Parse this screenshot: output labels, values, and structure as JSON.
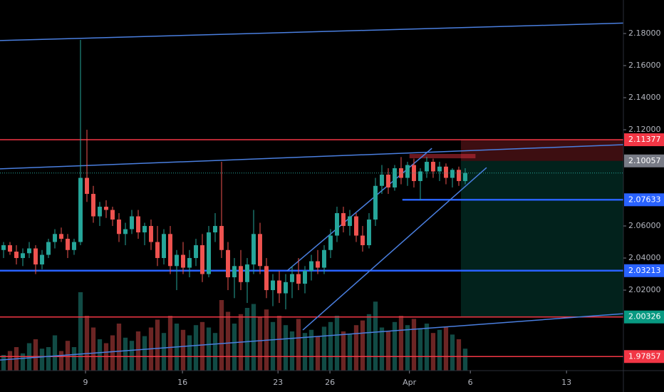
{
  "chart_data": {
    "type": "candlestick",
    "up_color": "#26a69a",
    "down_color": "#ef5350",
    "xlim": [
      -0.556,
      96.67
    ],
    "xticks": [
      {
        "value": 12.78,
        "label": "9"
      },
      {
        "value": 27.9,
        "label": "16"
      },
      {
        "value": 42.8,
        "label": "23"
      },
      {
        "value": 50.9,
        "label": "26"
      },
      {
        "value": 63.3,
        "label": "Apr"
      },
      {
        "value": 72.8,
        "label": "6"
      },
      {
        "value": 87.8,
        "label": "13"
      }
    ],
    "ylim": [
      1.9698,
      2.2009
    ],
    "yticks": [
      {
        "value": 2.18,
        "label": "2.18000"
      },
      {
        "value": 2.16,
        "label": "2.16000"
      },
      {
        "value": 2.14,
        "label": "2.14000"
      },
      {
        "value": 2.12,
        "label": "2.12000"
      },
      {
        "value": 2.06,
        "label": "2.06000"
      },
      {
        "value": 2.04,
        "label": "2.04000"
      },
      {
        "value": 2.02,
        "label": "2.02000"
      }
    ],
    "candles": [
      [
        2.045,
        2.05,
        2.04,
        2.048
      ],
      [
        2.048,
        2.05,
        2.042,
        2.044
      ],
      [
        2.044,
        2.048,
        2.036,
        2.04
      ],
      [
        2.04,
        2.046,
        2.035,
        2.043
      ],
      [
        2.043,
        2.05,
        2.04,
        2.046
      ],
      [
        2.046,
        2.048,
        2.03,
        2.036
      ],
      [
        2.036,
        2.045,
        2.033,
        2.042
      ],
      [
        2.042,
        2.052,
        2.04,
        2.05
      ],
      [
        2.05,
        2.058,
        2.046,
        2.055
      ],
      [
        2.055,
        2.059,
        2.05,
        2.052
      ],
      [
        2.052,
        2.055,
        2.04,
        2.045
      ],
      [
        2.045,
        2.052,
        2.042,
        2.05
      ],
      [
        2.05,
        2.176,
        2.048,
        2.09
      ],
      [
        2.09,
        2.12,
        2.075,
        2.08
      ],
      [
        2.08,
        2.085,
        2.062,
        2.066
      ],
      [
        2.066,
        2.075,
        2.06,
        2.072
      ],
      [
        2.072,
        2.076,
        2.065,
        2.07
      ],
      [
        2.07,
        2.072,
        2.06,
        2.064
      ],
      [
        2.064,
        2.068,
        2.05,
        2.055
      ],
      [
        2.055,
        2.062,
        2.048,
        2.058
      ],
      [
        2.058,
        2.07,
        2.055,
        2.066
      ],
      [
        2.066,
        2.07,
        2.052,
        2.056
      ],
      [
        2.056,
        2.062,
        2.048,
        2.06
      ],
      [
        2.06,
        2.064,
        2.045,
        2.05
      ],
      [
        2.05,
        2.06,
        2.035,
        2.04
      ],
      [
        2.04,
        2.058,
        2.036,
        2.055
      ],
      [
        2.055,
        2.06,
        2.03,
        2.035
      ],
      [
        2.035,
        2.045,
        2.02,
        2.042
      ],
      [
        2.042,
        2.05,
        2.03,
        2.034
      ],
      [
        2.034,
        2.045,
        2.028,
        2.04
      ],
      [
        2.04,
        2.052,
        2.035,
        2.048
      ],
      [
        2.048,
        2.055,
        2.025,
        2.03
      ],
      [
        2.03,
        2.06,
        2.028,
        2.056
      ],
      [
        2.056,
        2.068,
        2.05,
        2.06
      ],
      [
        2.06,
        2.1,
        2.04,
        2.045
      ],
      [
        2.045,
        2.05,
        2.02,
        2.028
      ],
      [
        2.028,
        2.04,
        2.015,
        2.035
      ],
      [
        2.035,
        2.045,
        2.02,
        2.025
      ],
      [
        2.025,
        2.04,
        2.012,
        2.036
      ],
      [
        2.036,
        2.07,
        2.03,
        2.055
      ],
      [
        2.055,
        2.062,
        2.03,
        2.035
      ],
      [
        2.035,
        2.04,
        2.015,
        2.02
      ],
      [
        2.02,
        2.03,
        2.01,
        2.026
      ],
      [
        2.026,
        2.032,
        2.012,
        2.018
      ],
      [
        2.018,
        2.03,
        2.008,
        2.025
      ],
      [
        2.025,
        2.035,
        2.015,
        2.03
      ],
      [
        2.03,
        2.04,
        2.02,
        2.024
      ],
      [
        2.024,
        2.035,
        2.018,
        2.032
      ],
      [
        2.032,
        2.042,
        2.026,
        2.038
      ],
      [
        2.038,
        2.045,
        2.03,
        2.034
      ],
      [
        2.034,
        2.048,
        2.03,
        2.045
      ],
      [
        2.045,
        2.058,
        2.04,
        2.054
      ],
      [
        2.054,
        2.072,
        2.05,
        2.068
      ],
      [
        2.068,
        2.072,
        2.056,
        2.06
      ],
      [
        2.06,
        2.07,
        2.054,
        2.066
      ],
      [
        2.066,
        2.068,
        2.05,
        2.054
      ],
      [
        2.054,
        2.06,
        2.044,
        2.048
      ],
      [
        2.048,
        2.068,
        2.046,
        2.064
      ],
      [
        2.064,
        2.09,
        2.06,
        2.085
      ],
      [
        2.085,
        2.098,
        2.08,
        2.092
      ],
      [
        2.092,
        2.096,
        2.08,
        2.084
      ],
      [
        2.084,
        2.098,
        2.082,
        2.096
      ],
      [
        2.096,
        2.103,
        2.086,
        2.09
      ],
      [
        2.09,
        2.1,
        2.085,
        2.098
      ],
      [
        2.098,
        2.102,
        2.084,
        2.088
      ],
      [
        2.088,
        2.096,
        2.076,
        2.094
      ],
      [
        2.094,
        2.103,
        2.09,
        2.1
      ],
      [
        2.1,
        2.102,
        2.09,
        2.094
      ],
      [
        2.094,
        2.1,
        2.088,
        2.097
      ],
      [
        2.097,
        2.099,
        2.086,
        2.09
      ],
      [
        2.09,
        2.096,
        2.084,
        2.095
      ],
      [
        2.095,
        2.097,
        2.085,
        2.088
      ],
      [
        2.088,
        2.096,
        2.086,
        2.093
      ]
    ],
    "volume": [
      20,
      25,
      30,
      22,
      35,
      40,
      28,
      30,
      45,
      25,
      38,
      30,
      100,
      70,
      55,
      40,
      35,
      45,
      60,
      42,
      38,
      50,
      44,
      55,
      65,
      48,
      70,
      60,
      52,
      45,
      58,
      62,
      55,
      48,
      90,
      75,
      60,
      72,
      80,
      85,
      68,
      78,
      62,
      70,
      58,
      50,
      66,
      48,
      52,
      44,
      56,
      62,
      70,
      50,
      46,
      58,
      64,
      72,
      88,
      55,
      50,
      62,
      70,
      58,
      66,
      54,
      60,
      48,
      52,
      56,
      46,
      40,
      28
    ],
    "levels": [
      {
        "value": 2.11377,
        "color": "#f23645"
      },
      {
        "value": 2.10057,
        "color": "#787b86",
        "style": "label-only"
      },
      {
        "value": 2.07633,
        "color": "#2962ff",
        "start": 62.2
      },
      {
        "value": 2.03213,
        "color": "#2962ff"
      },
      {
        "value": 2.00326,
        "color": "#f23645",
        "label_color": "#089981"
      },
      {
        "value": 1.97857,
        "color": "#f23645"
      }
    ],
    "zones": [
      {
        "x": [
          71.33,
          96.67
        ],
        "y": [
          2.10057,
          2.11377
        ],
        "color": "rgba(242,54,69,0.25)"
      },
      {
        "x": [
          71.33,
          96.67
        ],
        "y": [
          2.00326,
          2.10057
        ],
        "color": "rgba(8,153,129,0.22)"
      },
      {
        "x": [
          63.3,
          73.6
        ],
        "y": [
          2.1022,
          2.1049
        ],
        "color": "rgba(242,54,69,0.45)"
      }
    ],
    "lines": [
      {
        "x": [
          -0.556,
          96.67
        ],
        "y": [
          2.1756,
          2.1865
        ],
        "color": "#4a7fe0"
      },
      {
        "x": [
          -0.556,
          96.67
        ],
        "y": [
          2.0956,
          2.1107
        ],
        "color": "#4a7fe0"
      },
      {
        "x": [
          -0.556,
          96.67
        ],
        "y": [
          1.9764,
          2.0053
        ],
        "color": "#4a7fe0"
      },
      {
        "x": [
          46.67,
          75.33
        ],
        "y": [
          1.9951,
          2.0964
        ],
        "color": "#4a7fe0"
      },
      {
        "x": [
          44.2,
          66.8
        ],
        "y": [
          2.032,
          2.1084
        ],
        "color": "#4a7fe0"
      }
    ]
  }
}
